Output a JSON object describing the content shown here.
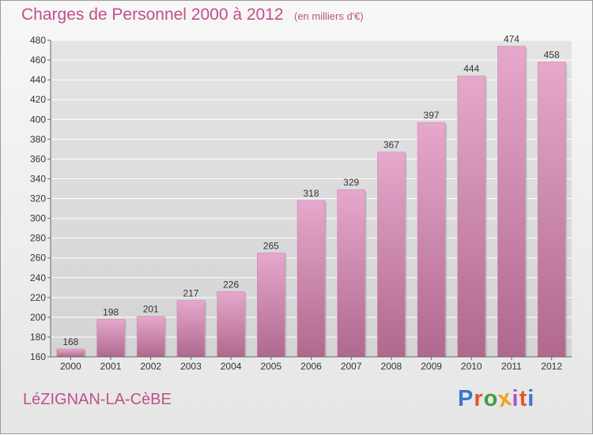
{
  "header": {
    "title": "Charges de Personnel 2000 à 2012",
    "subtitle": "(en milliers d'€)"
  },
  "footer": {
    "commune": "LéZIGNAN-LA-CèBE",
    "brand": "Proxiti"
  },
  "colors": {
    "title": "#c0508a",
    "bar_top": "#e6a8cc",
    "bar_bottom": "#b0688f",
    "grid": "#ffffff"
  },
  "chart_data": {
    "type": "bar",
    "categories": [
      "2000",
      "2001",
      "2002",
      "2003",
      "2004",
      "2005",
      "2006",
      "2007",
      "2008",
      "2009",
      "2010",
      "2011",
      "2012"
    ],
    "values": [
      168,
      198,
      201,
      217,
      226,
      265,
      318,
      329,
      367,
      397,
      444,
      474,
      458
    ],
    "ylim": [
      160,
      480
    ],
    "yticks": [
      160,
      180,
      200,
      220,
      240,
      260,
      280,
      300,
      320,
      340,
      360,
      380,
      400,
      420,
      440,
      460,
      480
    ],
    "grid": true,
    "data_labels": true
  }
}
